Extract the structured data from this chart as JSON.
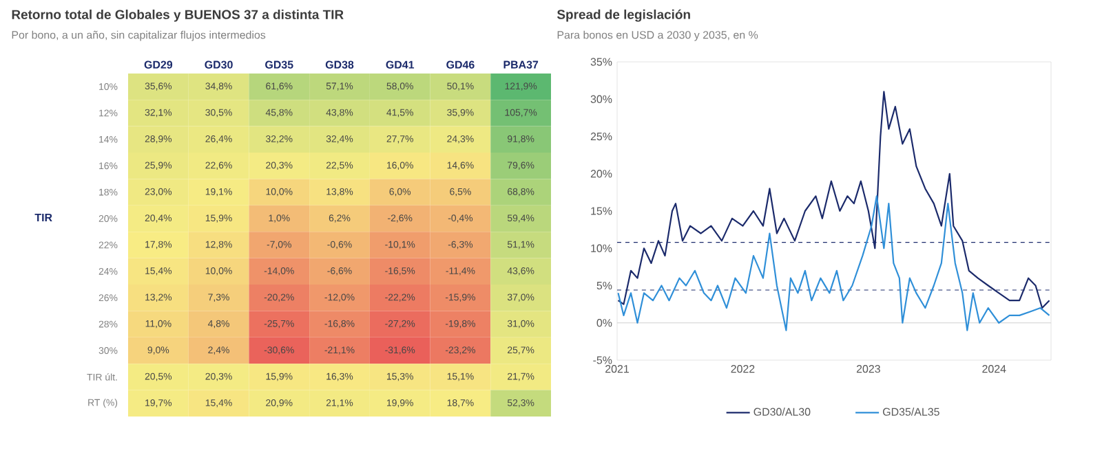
{
  "chart_data": [
    {
      "type": "heatmap",
      "title": "Retorno total de Globales y BUENOS 37 a distinta TIR",
      "subtitle": "Por bono, a un año, sin capitalizar flujos intermedios",
      "ylabel": "TIR",
      "categories": [
        "GD29",
        "GD30",
        "GD35",
        "GD38",
        "GD41",
        "GD46",
        "PBA37"
      ],
      "y_categories": [
        "10%",
        "12%",
        "14%",
        "16%",
        "18%",
        "20%",
        "22%",
        "24%",
        "26%",
        "28%",
        "30%",
        "TIR últ.",
        "RT (%)"
      ],
      "cells": [
        [
          35.6,
          34.8,
          61.6,
          57.1,
          58.0,
          50.1,
          121.9
        ],
        [
          32.1,
          30.5,
          45.8,
          43.8,
          41.5,
          35.9,
          105.7
        ],
        [
          28.9,
          26.4,
          32.2,
          32.4,
          27.7,
          24.3,
          91.8
        ],
        [
          25.9,
          22.6,
          20.3,
          22.5,
          16.0,
          14.6,
          79.6
        ],
        [
          23.0,
          19.1,
          10.0,
          13.8,
          6.0,
          6.5,
          68.8
        ],
        [
          20.4,
          15.9,
          1.0,
          6.2,
          -2.6,
          -0.4,
          59.4
        ],
        [
          17.8,
          12.8,
          -7.0,
          -0.6,
          -10.1,
          -6.3,
          51.1
        ],
        [
          15.4,
          10.0,
          -14.0,
          -6.6,
          -16.5,
          -11.4,
          43.6
        ],
        [
          13.2,
          7.3,
          -20.2,
          -12.0,
          -22.2,
          -15.9,
          37.0
        ],
        [
          11.0,
          4.8,
          -25.7,
          -16.8,
          -27.2,
          -19.8,
          31.0
        ],
        [
          9.0,
          2.4,
          -30.6,
          -21.1,
          -31.6,
          -23.2,
          25.7
        ],
        [
          20.5,
          20.3,
          15.9,
          16.3,
          15.3,
          15.1,
          21.7
        ],
        [
          19.7,
          15.4,
          20.9,
          21.1,
          19.9,
          18.7,
          52.3
        ]
      ],
      "cell_labels": [
        [
          "35,6%",
          "34,8%",
          "61,6%",
          "57,1%",
          "58,0%",
          "50,1%",
          "121,9%"
        ],
        [
          "32,1%",
          "30,5%",
          "45,8%",
          "43,8%",
          "41,5%",
          "35,9%",
          "105,7%"
        ],
        [
          "28,9%",
          "26,4%",
          "32,2%",
          "32,4%",
          "27,7%",
          "24,3%",
          "91,8%"
        ],
        [
          "25,9%",
          "22,6%",
          "20,3%",
          "22,5%",
          "16,0%",
          "14,6%",
          "79,6%"
        ],
        [
          "23,0%",
          "19,1%",
          "10,0%",
          "13,8%",
          "6,0%",
          "6,5%",
          "68,8%"
        ],
        [
          "20,4%",
          "15,9%",
          "1,0%",
          "6,2%",
          "-2,6%",
          "-0,4%",
          "59,4%"
        ],
        [
          "17,8%",
          "12,8%",
          "-7,0%",
          "-0,6%",
          "-10,1%",
          "-6,3%",
          "51,1%"
        ],
        [
          "15,4%",
          "10,0%",
          "-14,0%",
          "-6,6%",
          "-16,5%",
          "-11,4%",
          "43,6%"
        ],
        [
          "13,2%",
          "7,3%",
          "-20,2%",
          "-12,0%",
          "-22,2%",
          "-15,9%",
          "37,0%"
        ],
        [
          "11,0%",
          "4,8%",
          "-25,7%",
          "-16,8%",
          "-27,2%",
          "-19,8%",
          "31,0%"
        ],
        [
          "9,0%",
          "2,4%",
          "-30,6%",
          "-21,1%",
          "-31,6%",
          "-23,2%",
          "25,7%"
        ],
        [
          "20,5%",
          "20,3%",
          "15,9%",
          "16,3%",
          "15,3%",
          "15,1%",
          "21,7%"
        ],
        [
          "19,7%",
          "15,4%",
          "20,9%",
          "21,1%",
          "19,9%",
          "18,7%",
          "52,3%"
        ]
      ]
    },
    {
      "type": "line",
      "title": "Spread de legislación",
      "subtitle": "Para bonos en USD a 2030 y 2035, en %",
      "legend": "bottom",
      "line_style": "solid",
      "xlim": [
        "2021-01-01",
        "2024-06-15"
      ],
      "xticks": [
        "2021",
        "2022",
        "2023",
        "2024"
      ],
      "ylim": [
        -5,
        35
      ],
      "yticks": [
        {
          "value": -5,
          "label": "-5%"
        },
        {
          "value": 0,
          "label": "0%"
        },
        {
          "value": 5,
          "label": "5%"
        },
        {
          "value": 10,
          "label": "10%"
        },
        {
          "value": 15,
          "label": "15%"
        },
        {
          "value": 20,
          "label": "20%"
        },
        {
          "value": 25,
          "label": "25%"
        },
        {
          "value": 30,
          "label": "30%"
        },
        {
          "value": 35,
          "label": "35%"
        }
      ],
      "ref_lines": [
        {
          "axis": "y",
          "value": 10.8,
          "color": "#1b2a6b",
          "line_style": "dashed"
        },
        {
          "axis": "y",
          "value": 4.4,
          "color": "#1b2a6b",
          "line_style": "dashed"
        },
        {
          "axis": "y",
          "value": 0,
          "color": "#d0d0d0",
          "line_style": "solid"
        }
      ],
      "series": [
        {
          "name": "GD30/AL30",
          "color": "#1b2a6b",
          "x": [
            "2021-01-04",
            "2021-01-20",
            "2021-02-10",
            "2021-03-01",
            "2021-03-20",
            "2021-04-10",
            "2021-05-01",
            "2021-05-20",
            "2021-06-10",
            "2021-06-20",
            "2021-07-10",
            "2021-08-01",
            "2021-09-01",
            "2021-10-01",
            "2021-11-01",
            "2021-12-01",
            "2022-01-01",
            "2022-02-01",
            "2022-03-01",
            "2022-03-20",
            "2022-04-10",
            "2022-05-01",
            "2022-06-01",
            "2022-07-01",
            "2022-08-01",
            "2022-08-20",
            "2022-09-15",
            "2022-10-10",
            "2022-11-01",
            "2022-11-20",
            "2022-12-10",
            "2023-01-01",
            "2023-01-20",
            "2023-02-05",
            "2023-02-15",
            "2023-03-01",
            "2023-03-20",
            "2023-04-10",
            "2023-05-01",
            "2023-05-20",
            "2023-06-15",
            "2023-07-10",
            "2023-08-01",
            "2023-08-25",
            "2023-09-05",
            "2023-10-01",
            "2023-10-20",
            "2023-11-15",
            "2023-12-15",
            "2024-01-15",
            "2024-02-15",
            "2024-03-15",
            "2024-04-10",
            "2024-05-01",
            "2024-05-20",
            "2024-06-10"
          ],
          "values": [
            3,
            2.5,
            7,
            6,
            10,
            8,
            11,
            9,
            15,
            16,
            11,
            13,
            12,
            13,
            11,
            14,
            13,
            15,
            13,
            18,
            12,
            14,
            11,
            15,
            17,
            14,
            19,
            15,
            17,
            16,
            19,
            15,
            10,
            25,
            31,
            26,
            29,
            24,
            26,
            21,
            18,
            16,
            13,
            20,
            13,
            11,
            7,
            6,
            5,
            4,
            3,
            3,
            6,
            5,
            2,
            3
          ]
        },
        {
          "name": "GD35/AL35",
          "color": "#2f8fd8",
          "x": [
            "2021-01-04",
            "2021-01-20",
            "2021-02-10",
            "2021-03-01",
            "2021-03-20",
            "2021-04-15",
            "2021-05-10",
            "2021-06-01",
            "2021-07-01",
            "2021-07-20",
            "2021-08-15",
            "2021-09-10",
            "2021-10-01",
            "2021-10-20",
            "2021-11-15",
            "2021-12-10",
            "2022-01-10",
            "2022-02-01",
            "2022-03-01",
            "2022-03-20",
            "2022-04-10",
            "2022-05-07",
            "2022-05-20",
            "2022-06-10",
            "2022-07-01",
            "2022-07-20",
            "2022-08-15",
            "2022-09-10",
            "2022-10-01",
            "2022-10-20",
            "2022-11-15",
            "2022-12-15",
            "2023-01-10",
            "2023-01-25",
            "2023-02-15",
            "2023-03-01",
            "2023-03-15",
            "2023-04-01",
            "2023-04-10",
            "2023-05-01",
            "2023-05-20",
            "2023-06-15",
            "2023-07-10",
            "2023-08-01",
            "2023-08-20",
            "2023-09-10",
            "2023-10-01",
            "2023-10-15",
            "2023-11-01",
            "2023-11-20",
            "2023-12-15",
            "2024-01-15",
            "2024-02-15",
            "2024-03-15",
            "2024-04-15",
            "2024-05-15",
            "2024-06-10"
          ],
          "values": [
            4,
            1,
            4,
            0,
            4,
            3,
            5,
            3,
            6,
            5,
            7,
            4,
            3,
            5,
            2,
            6,
            4,
            9,
            6,
            12,
            5,
            -1,
            6,
            4,
            7,
            3,
            6,
            4,
            7,
            3,
            5,
            9,
            13,
            17,
            10,
            16,
            8,
            6,
            0,
            6,
            4,
            2,
            5,
            8,
            16,
            8,
            4,
            -1,
            4,
            0,
            2,
            0,
            1,
            1,
            1.5,
            2,
            1
          ]
        }
      ]
    }
  ]
}
